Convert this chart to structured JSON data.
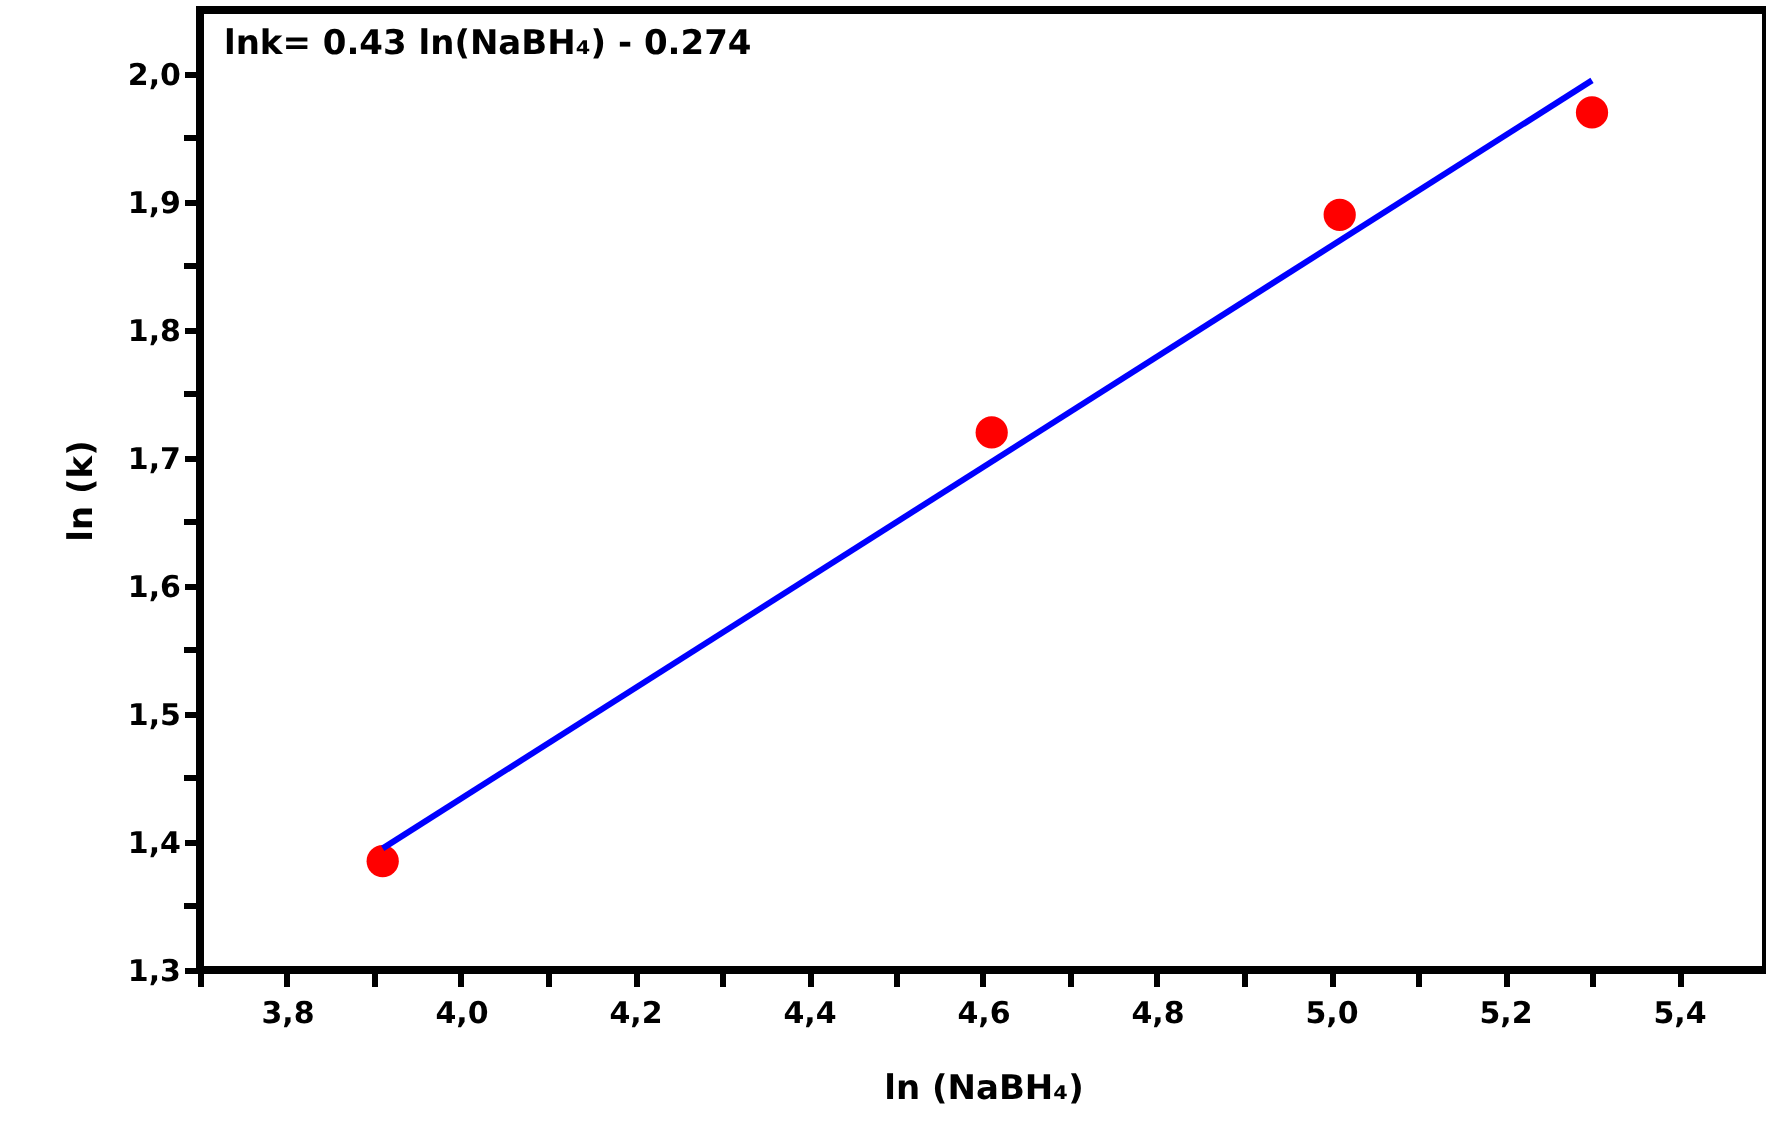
{
  "chart_data": {
    "type": "scatter",
    "xlabel": "ln (NaBH₄)",
    "ylabel": "ln (k)",
    "annotations": [
      "lnk= 0.43 ln(NaBH₄) - 0.274"
    ],
    "series": [
      {
        "type": "scatter",
        "color": "#ff0000",
        "marker": "circle",
        "x": [
          3.91,
          4.61,
          5.01,
          5.3
        ],
        "values": [
          1.385,
          1.72,
          1.89,
          1.97
        ]
      },
      {
        "type": "line",
        "color": "#0000ff",
        "marker": "none",
        "x": [
          3.91,
          5.3
        ],
        "values": [
          1.395,
          1.995
        ]
      }
    ],
    "xlim": [
      3.7,
      5.5
    ],
    "ylim": [
      1.3,
      2.05
    ],
    "xticks": [
      {
        "value": 3.7,
        "label": null
      },
      {
        "value": 3.8,
        "label": "3,8"
      },
      {
        "value": 3.9,
        "label": null
      },
      {
        "value": 4.0,
        "label": "4,0"
      },
      {
        "value": 4.1,
        "label": null
      },
      {
        "value": 4.2,
        "label": "4,2"
      },
      {
        "value": 4.3,
        "label": null
      },
      {
        "value": 4.4,
        "label": "4,4"
      },
      {
        "value": 4.5,
        "label": null
      },
      {
        "value": 4.6,
        "label": "4,6"
      },
      {
        "value": 4.7,
        "label": null
      },
      {
        "value": 4.8,
        "label": "4,8"
      },
      {
        "value": 4.9,
        "label": null
      },
      {
        "value": 5.0,
        "label": "5,0"
      },
      {
        "value": 5.1,
        "label": null
      },
      {
        "value": 5.2,
        "label": "5,2"
      },
      {
        "value": 5.3,
        "label": null
      },
      {
        "value": 5.4,
        "label": "5,4"
      }
    ],
    "yticks": [
      {
        "value": 1.3,
        "label": "1,3"
      },
      {
        "value": 1.35,
        "label": null
      },
      {
        "value": 1.4,
        "label": "1,4"
      },
      {
        "value": 1.45,
        "label": null
      },
      {
        "value": 1.5,
        "label": "1,5"
      },
      {
        "value": 1.55,
        "label": null
      },
      {
        "value": 1.6,
        "label": "1,6"
      },
      {
        "value": 1.65,
        "label": null
      },
      {
        "value": 1.7,
        "label": "1,7"
      },
      {
        "value": 1.75,
        "label": null
      },
      {
        "value": 1.8,
        "label": "1,8"
      },
      {
        "value": 1.85,
        "label": null
      },
      {
        "value": 1.9,
        "label": "1,9"
      },
      {
        "value": 1.95,
        "label": null
      },
      {
        "value": 2.0,
        "label": "2,0"
      }
    ],
    "grid": false,
    "legend": false
  }
}
